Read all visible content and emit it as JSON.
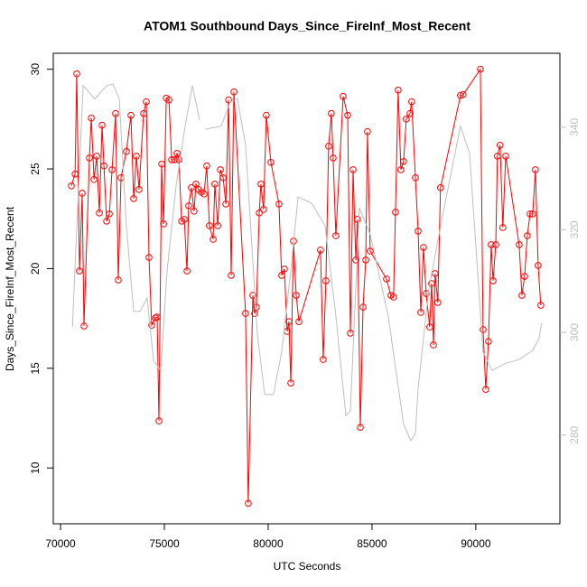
{
  "chart_data": {
    "type": "line",
    "title": "ATOM1 Southbound Days_Since_FireInf_Most_Recent",
    "xlabel": "UTC Seconds",
    "ylabel": "Days_Since_FireInf_Most_Recent",
    "xlim": [
      69650,
      94050
    ],
    "xticks": [
      70000,
      75000,
      80000,
      85000,
      90000
    ],
    "ylim": [
      7.2,
      30.8
    ],
    "yticks": [
      10,
      15,
      20,
      25,
      30
    ],
    "y2lim": [
      262.7,
      354.4
    ],
    "y2ticks": [
      280,
      300,
      320,
      340
    ],
    "grid": false,
    "x": [
      70520,
      70700,
      70780,
      70910,
      71040,
      71130,
      71390,
      71480,
      71610,
      71740,
      71870,
      72000,
      72090,
      72220,
      72350,
      72480,
      72650,
      72780,
      72910,
      73170,
      73390,
      73520,
      73650,
      73780,
      74000,
      74130,
      74260,
      74390,
      74570,
      74650,
      74740,
      74870,
      74960,
      75090,
      75220,
      75350,
      75480,
      75610,
      75700,
      75830,
      75960,
      76090,
      76170,
      76300,
      76430,
      76520,
      76650,
      76780,
      76910,
      77040,
      77170,
      77350,
      77430,
      77570,
      77700,
      77830,
      77960,
      78090,
      78220,
      78350,
      78910,
      79040,
      79260,
      79350,
      79430,
      79570,
      79650,
      79780,
      79910,
      80130,
      80520,
      80650,
      80780,
      80910,
      81000,
      81090,
      81220,
      81350,
      81480,
      82520,
      82650,
      82780,
      82910,
      83040,
      83130,
      83260,
      83610,
      83830,
      83960,
      84090,
      84220,
      84300,
      84440,
      84570,
      84700,
      84780,
      84910,
      85700,
      85910,
      86040,
      86130,
      86260,
      86390,
      86520,
      86650,
      86830,
      86910,
      87090,
      87220,
      87350,
      87480,
      87610,
      87780,
      87870,
      87960,
      88040,
      88170,
      88300,
      89260,
      89390,
      90220,
      90350,
      90480,
      90610,
      90740,
      90830,
      90960,
      91040,
      91170,
      91300,
      91440,
      92090,
      92220,
      92350,
      92480,
      92610,
      92740,
      92870,
      93000,
      93130
    ],
    "series": [
      {
        "color": "#ff0000",
        "markers": true,
        "values": [
          24.15,
          24.74,
          29.77,
          19.88,
          23.78,
          17.12,
          25.55,
          27.55,
          24.47,
          25.64,
          22.79,
          27.19,
          25.15,
          22.38,
          22.74,
          24.96,
          27.78,
          19.43,
          24.56,
          25.87,
          27.69,
          23.51,
          25.64,
          23.97,
          27.78,
          28.37,
          20.56,
          17.16,
          17.53,
          17.57,
          12.36,
          25.24,
          22.24,
          28.55,
          28.46,
          25.46,
          25.46,
          25.78,
          25.46,
          22.38,
          22.47,
          19.88,
          23.15,
          24.06,
          22.88,
          24.24,
          23.97,
          23.83,
          23.74,
          25.15,
          22.15,
          21.47,
          24.24,
          22.15,
          24.96,
          24.56,
          23.24,
          28.46,
          19.66,
          28.86,
          17.75,
          8.23,
          18.66,
          17.75,
          18.07,
          22.79,
          24.24,
          22.97,
          27.69,
          25.33,
          23.24,
          19.66,
          19.98,
          16.85,
          17.34,
          14.26,
          21.38,
          18.66,
          17.34,
          20.93,
          15.44,
          19.39,
          26.14,
          27.78,
          25.55,
          21.65,
          28.64,
          27.69,
          16.76,
          24.96,
          20.43,
          22.47,
          12.04,
          18.07,
          20.43,
          26.87,
          20.88,
          19.48,
          18.66,
          18.57,
          22.83,
          28.95,
          24.96,
          25.37,
          27.5,
          27.78,
          28.37,
          24.56,
          21.88,
          17.8,
          21.06,
          18.75,
          17.07,
          19.25,
          16.17,
          19.75,
          18.3,
          24.06,
          28.68,
          28.73,
          30.0,
          16.94,
          13.94,
          16.35,
          21.2,
          19.39,
          21.2,
          25.64,
          26.19,
          22.06,
          25.64,
          21.2,
          18.66,
          19.61,
          21.65,
          22.74,
          22.74,
          24.96,
          20.16,
          18.16
        ]
      },
      {
        "color": "#bebebe",
        "axis": "y2",
        "markers": false,
        "x": [
          70570,
          71090,
          71650,
          72220,
          72520,
          72830,
          73170,
          73520,
          73830,
          74170,
          74480,
          74830,
          75130,
          75570,
          76000,
          76350,
          76700,
          null,
          76960,
          77740,
          78170,
          78520,
          78910,
          79480,
          79830,
          80260,
          80650,
          81090,
          81440,
          82090,
          82740,
          83260,
          83740,
          83960,
          84390,
          84910,
          85780,
          86520,
          86870,
          87090,
          87220,
          87740,
          88390,
          89260,
          89700,
          90350,
          90780,
          91440,
          92090,
          92740,
          93040,
          93170
        ],
        "values": [
          301.1,
          348.1,
          345.5,
          348.1,
          348.4,
          345.5,
          320.8,
          304.1,
          304.1,
          306.7,
          294.4,
          292.6,
          312.0,
          328.7,
          340.2,
          348.1,
          341.4,
          null,
          339.6,
          340.2,
          344.9,
          345.5,
          336.6,
          299.7,
          287.9,
          287.9,
          296.2,
          312.0,
          326.4,
          325.2,
          320.8,
          303.2,
          283.8,
          284.7,
          324.3,
          319.1,
          303.2,
          282.1,
          278.9,
          280.3,
          289.1,
          308.5,
          322.6,
          340.2,
          334.9,
          296.2,
          292.6,
          294.0,
          294.7,
          296.5,
          298.8,
          301.8
        ]
      }
    ]
  }
}
